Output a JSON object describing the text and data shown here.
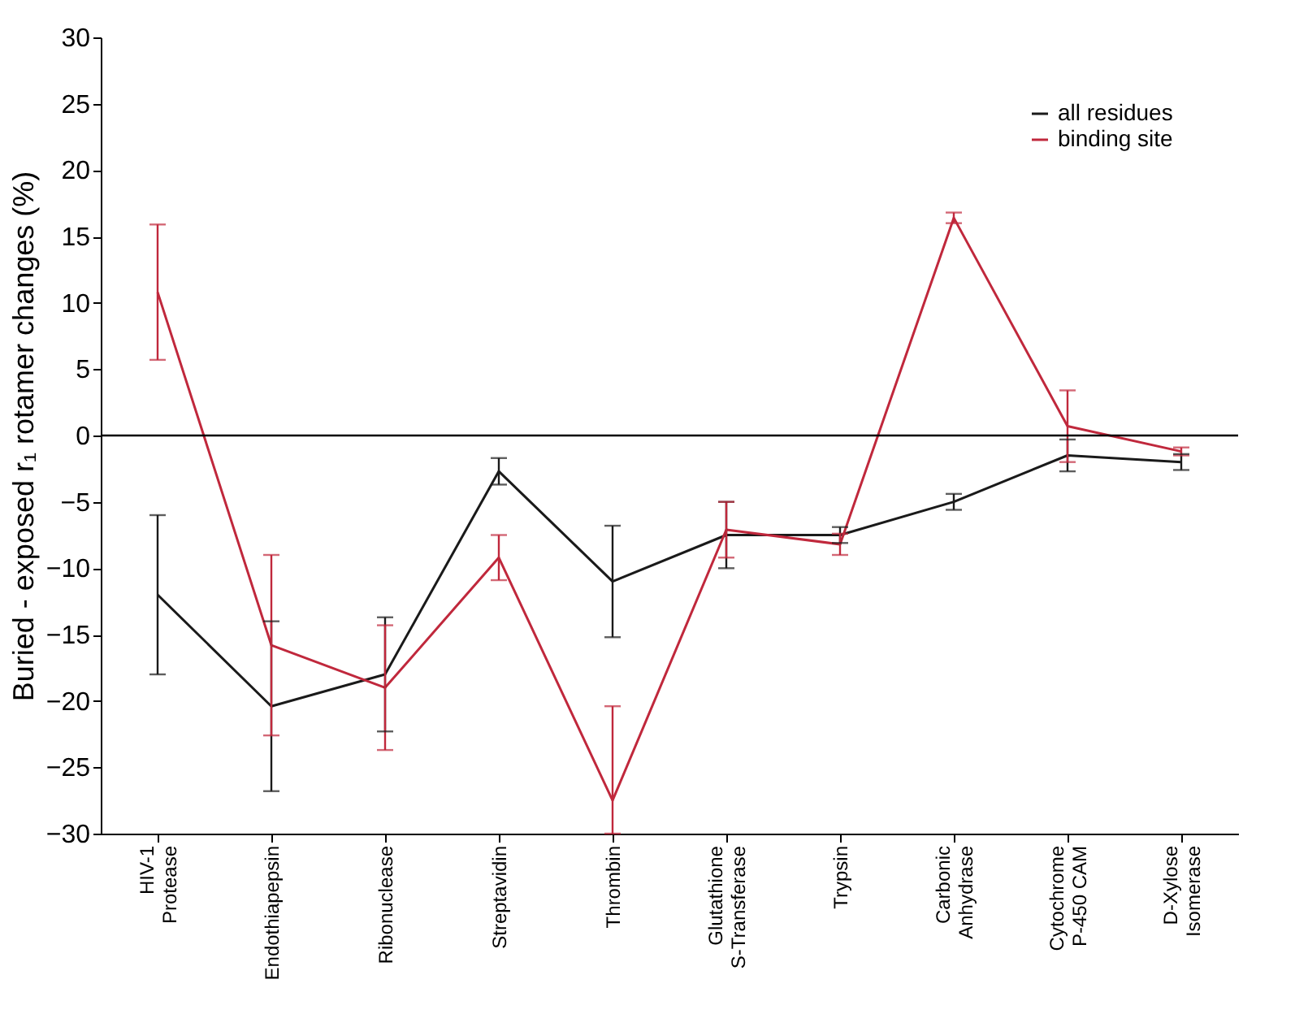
{
  "chart_data": {
    "type": "line",
    "ylabel": "Buried - exposed r₁ rotamer changes (%)",
    "categories": [
      "HIV-1\nProtease",
      "Endothiapepsin",
      "Ribonuclease",
      "Streptavidin",
      "Thrombin",
      "Glutathione\nS-Transferase",
      "Trypsin",
      "Carbonic\nAnhydrase",
      "Cytochrome\nP-450 CAM",
      "D-Xylose\nIsomerase"
    ],
    "series": [
      {
        "name": "all residues",
        "color": "#1a1a1a",
        "values": [
          -12.0,
          -20.4,
          -18.0,
          -2.7,
          -11.0,
          -7.5,
          -7.5,
          -5.0,
          -1.5,
          -2.0
        ],
        "errors": [
          6.0,
          6.4,
          4.3,
          1.0,
          4.2,
          2.5,
          0.6,
          0.6,
          1.2,
          0.6
        ]
      },
      {
        "name": "binding site",
        "color": "#c0283c",
        "values": [
          10.8,
          -15.8,
          -19.0,
          -9.2,
          -27.5,
          -7.1,
          -8.2,
          16.4,
          0.7,
          -1.2
        ],
        "errors": [
          5.1,
          6.8,
          4.7,
          1.7,
          [
            -30.0,
            -20.4
          ],
          2.1,
          0.8,
          0.4,
          2.7,
          0.3
        ]
      }
    ],
    "ylim": [
      -30,
      30
    ],
    "yticks": [
      -30,
      -25,
      -20,
      -15,
      -10,
      -5,
      0,
      5,
      10,
      15,
      20,
      25,
      30
    ],
    "ref_lines": [
      {
        "axis": "y",
        "value": 0,
        "color": "#000000"
      }
    ],
    "legend": "top right",
    "grid": false,
    "marker": "none",
    "line_style": "solid"
  }
}
